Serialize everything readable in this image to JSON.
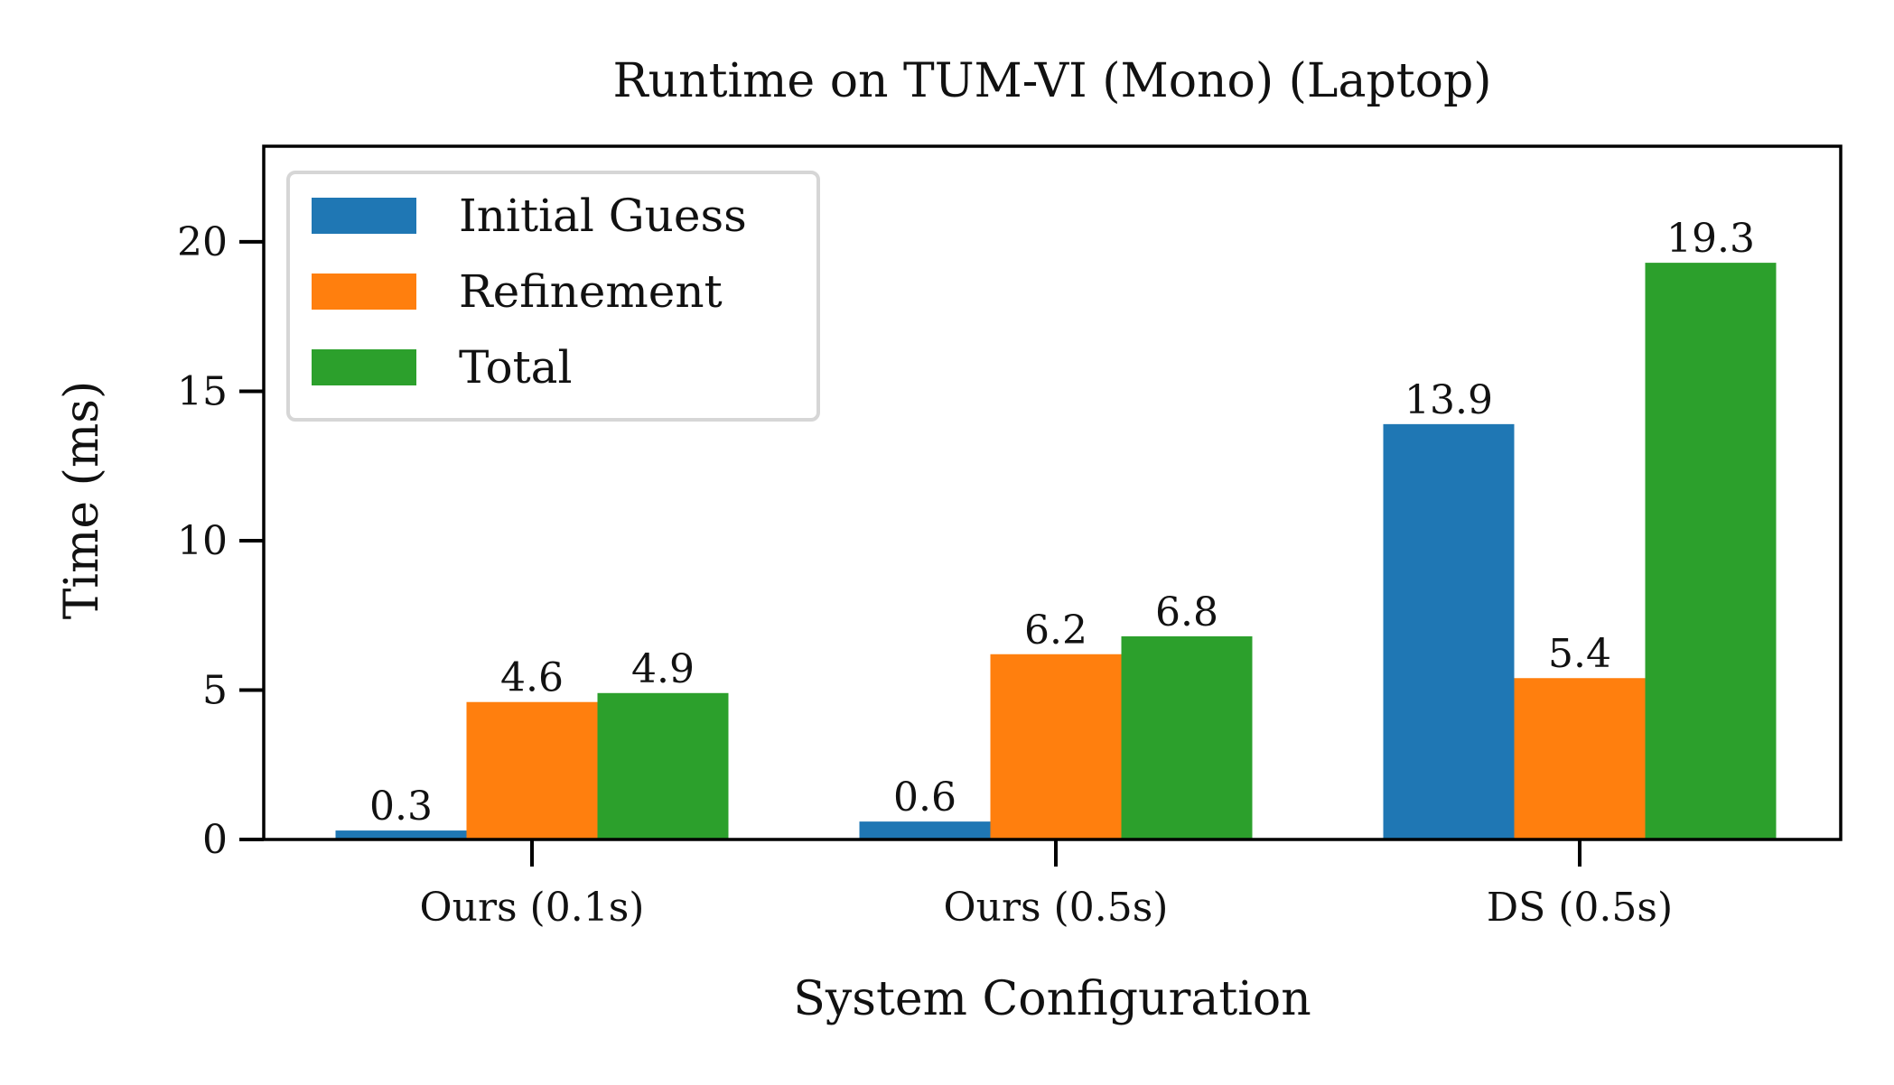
{
  "chart_data": {
    "type": "bar",
    "title": "Runtime on TUM-VI (Mono) (Laptop)",
    "xlabel": "System Configuration",
    "ylabel": "Time (ms)",
    "categories": [
      "Ours (0.1s)",
      "Ours (0.5s)",
      "DS (0.5s)"
    ],
    "series": [
      {
        "name": "Initial Guess",
        "color": "#1f77b4",
        "values": [
          0.3,
          0.6,
          13.9
        ],
        "labels": [
          "0.3",
          "0.6",
          "13.9"
        ]
      },
      {
        "name": "Refinement",
        "color": "#ff7f0e",
        "values": [
          4.6,
          6.2,
          5.4
        ],
        "labels": [
          "4.6",
          "6.2",
          "5.4"
        ]
      },
      {
        "name": "Total",
        "color": "#2ca02c",
        "values": [
          4.9,
          6.8,
          19.3
        ],
        "labels": [
          "4.9",
          "6.8",
          "19.3"
        ]
      }
    ],
    "ylim": [
      0,
      23.2
    ],
    "yticks": [
      0,
      5,
      10,
      15,
      20
    ],
    "ytick_labels": [
      "0",
      "5",
      "10",
      "15",
      "20"
    ],
    "grid": false,
    "legend_position": "top-left"
  }
}
